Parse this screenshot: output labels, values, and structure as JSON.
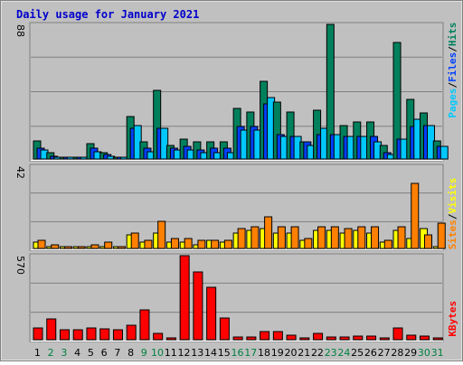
{
  "title": "Daily usage for January 2021",
  "colors": {
    "hits": "#00805c",
    "files": "#0040ff",
    "pages": "#00c8ff",
    "visits": "#ffff00",
    "sites": "#ff8000",
    "kbytes": "#ff0000",
    "weekend_day": "#008040",
    "weekday_day": "#000000",
    "panel_bg": "#c0c0c0",
    "frame": "#b0b0b0"
  },
  "legends": {
    "top": [
      "Pages",
      "/",
      "Files",
      "/",
      "Hits"
    ],
    "middle": [
      "Sites",
      "/",
      "Visits"
    ],
    "bottom": [
      "KBytes"
    ]
  },
  "chart_data": [
    {
      "type": "bar",
      "panel": "hits-files-pages",
      "max_label": "88",
      "categories": [
        "1",
        "2",
        "3",
        "4",
        "5",
        "6",
        "7",
        "8",
        "9",
        "10",
        "11",
        "12",
        "13",
        "14",
        "15",
        "16",
        "17",
        "18",
        "19",
        "20",
        "21",
        "22",
        "23",
        "24",
        "25",
        "26",
        "27",
        "28",
        "29",
        "30",
        "31"
      ],
      "weekend_days": [
        2,
        3,
        9,
        10,
        16,
        17,
        23,
        24,
        30,
        31
      ],
      "ylim": [
        0,
        88
      ],
      "series": [
        {
          "name": "Hits",
          "color_key": "hits",
          "values": [
            12,
            4,
            1,
            1,
            10,
            4,
            1,
            28,
            11,
            45,
            9,
            13,
            11,
            11,
            11,
            33,
            31,
            51,
            37,
            31,
            11,
            32,
            88,
            22,
            24,
            24,
            9,
            76,
            39,
            30,
            12
          ]
        },
        {
          "name": "Files",
          "color_key": "files",
          "values": [
            7,
            2,
            1,
            1,
            7,
            3,
            1,
            20,
            7,
            20,
            7,
            8,
            6,
            7,
            7,
            21,
            21,
            36,
            16,
            15,
            11,
            16,
            16,
            15,
            15,
            15,
            4,
            13,
            21,
            22,
            8
          ]
        },
        {
          "name": "Pages",
          "color_key": "pages",
          "values": [
            6,
            1,
            0,
            0,
            5,
            2,
            0,
            22,
            5,
            20,
            6,
            6,
            4,
            4,
            4,
            19,
            19,
            40,
            15,
            15,
            9,
            20,
            16,
            15,
            15,
            11,
            3,
            13,
            26,
            22,
            8
          ]
        }
      ]
    },
    {
      "type": "bar",
      "panel": "visits-sites",
      "max_label": "42",
      "categories": [
        "1",
        "2",
        "3",
        "4",
        "5",
        "6",
        "7",
        "8",
        "9",
        "10",
        "11",
        "12",
        "13",
        "14",
        "15",
        "16",
        "17",
        "18",
        "19",
        "20",
        "21",
        "22",
        "23",
        "24",
        "25",
        "26",
        "27",
        "28",
        "29",
        "30",
        "31"
      ],
      "ylim": [
        0,
        42
      ],
      "series": [
        {
          "name": "Visits",
          "color_key": "visits",
          "values": [
            3,
            1,
            0,
            0,
            1,
            1,
            0,
            7,
            3,
            8,
            3,
            3,
            2,
            4,
            3,
            8,
            9,
            10,
            8,
            8,
            4,
            9,
            9,
            8,
            9,
            8,
            3,
            9,
            5,
            10,
            0
          ]
        },
        {
          "name": "Sites",
          "color_key": "sites",
          "values": [
            4,
            2,
            1,
            1,
            2,
            3,
            1,
            8,
            4,
            14,
            5,
            5,
            4,
            4,
            4,
            10,
            11,
            16,
            11,
            11,
            5,
            11,
            11,
            10,
            11,
            11,
            4,
            11,
            33,
            7,
            13
          ]
        }
      ]
    },
    {
      "type": "bar",
      "panel": "kbytes",
      "max_label": "570",
      "categories": [
        "1",
        "2",
        "3",
        "4",
        "5",
        "6",
        "7",
        "8",
        "9",
        "10",
        "11",
        "12",
        "13",
        "14",
        "15",
        "16",
        "17",
        "18",
        "19",
        "20",
        "21",
        "22",
        "23",
        "24",
        "25",
        "26",
        "27",
        "28",
        "29",
        "30",
        "31"
      ],
      "ylim": [
        0,
        570
      ],
      "series": [
        {
          "name": "KBytes",
          "color_key": "kbytes",
          "values": [
            80,
            140,
            70,
            70,
            80,
            75,
            70,
            100,
            200,
            45,
            0,
            570,
            460,
            355,
            150,
            20,
            20,
            55,
            55,
            30,
            0,
            45,
            20,
            20,
            25,
            25,
            10,
            80,
            30,
            25,
            15
          ]
        }
      ]
    }
  ]
}
